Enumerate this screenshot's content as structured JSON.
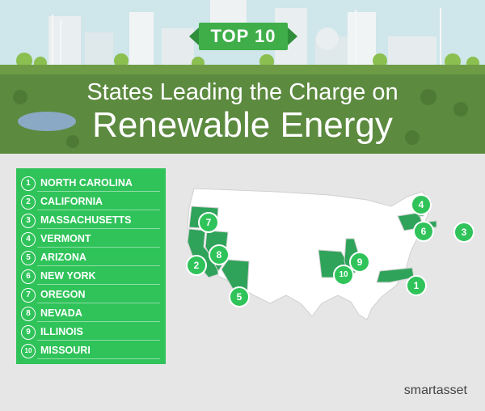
{
  "badge": "TOP 10",
  "title_line1": "States Leading the Charge on",
  "title_line2": "Renewable Energy",
  "rankings": [
    {
      "rank": "1",
      "state": "NORTH CAROLINA"
    },
    {
      "rank": "2",
      "state": "CALIFORNIA"
    },
    {
      "rank": "3",
      "state": "MASSACHUSETTS"
    },
    {
      "rank": "4",
      "state": "VERMONT"
    },
    {
      "rank": "5",
      "state": "ARIZONA"
    },
    {
      "rank": "6",
      "state": "NEW YORK"
    },
    {
      "rank": "7",
      "state": "OREGON"
    },
    {
      "rank": "8",
      "state": "NEVADA"
    },
    {
      "rank": "9",
      "state": "ILLINOIS"
    },
    {
      "rank": "10",
      "state": "MISSOURI"
    }
  ],
  "brand": "smartasset",
  "colors": {
    "accent": "#2fc35a",
    "header_green": "#5c8a3f",
    "state_highlight": "#2fa35a",
    "state_default": "#ffffff",
    "page_bg": "#e6e6e6"
  }
}
